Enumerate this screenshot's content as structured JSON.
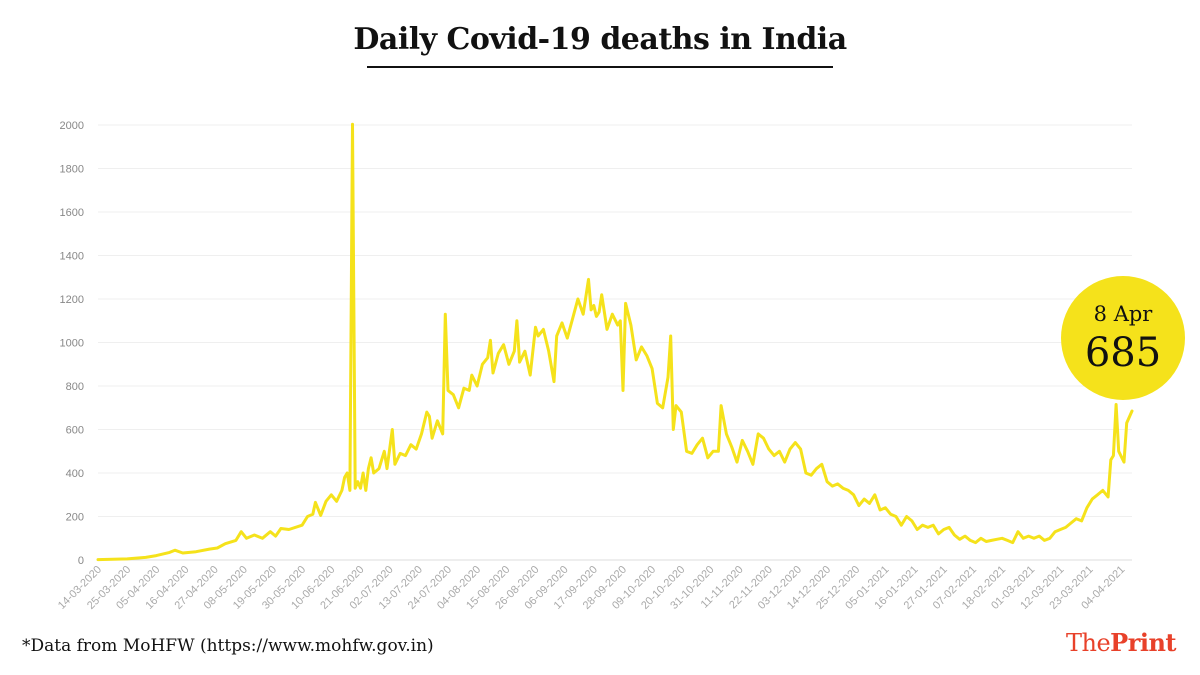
{
  "title": "Daily Covid-19 deaths in India",
  "source_note": "*Data from MoHFW (https://www.mohfw.gov.in)",
  "brand": {
    "part1": "The",
    "part2": "Print",
    "color": "#e8412a"
  },
  "callout": {
    "date": "8 Apr",
    "value": "685",
    "color": "#f5e21b"
  },
  "chart_data": {
    "type": "line",
    "title": "Daily Covid-19 deaths in India",
    "xlabel": "",
    "ylabel": "",
    "ylim": [
      0,
      2000
    ],
    "yticks": [
      0,
      200,
      400,
      600,
      800,
      1000,
      1200,
      1400,
      1600,
      1800,
      2000
    ],
    "grid": true,
    "line_color": "#f5e21b",
    "x_start": "2020-03-14",
    "x_end": "2021-04-08",
    "xtick_labels": [
      "14-03-2020",
      "25-03-2020",
      "05-04-2020",
      "16-04-2020",
      "27-04-2020",
      "08-05-2020",
      "19-05-2020",
      "30-05-2020",
      "10-06-2020",
      "21-06-2020",
      "02-07-2020",
      "13-07-2020",
      "24-07-2020",
      "04-08-2020",
      "15-08-2020",
      "26-08-2020",
      "06-09-2020",
      "17-09-2020",
      "28-09-2020",
      "09-10-2020",
      "20-10-2020",
      "31-10-2020",
      "11-11-2020",
      "22-11-2020",
      "03-12-2020",
      "14-12-2020",
      "25-12-2020",
      "05-01-2021",
      "16-01-2021",
      "27-01-2021",
      "07-02-2021",
      "18-02-2021",
      "01-03-2021",
      "12-03-2021",
      "23-03-2021",
      "04-04-2021"
    ],
    "series": [
      {
        "points": [
          [
            "2020-03-14",
            2
          ],
          [
            "2020-03-25",
            5
          ],
          [
            "2020-04-01",
            12
          ],
          [
            "2020-04-05",
            20
          ],
          [
            "2020-04-10",
            35
          ],
          [
            "2020-04-12",
            45
          ],
          [
            "2020-04-15",
            32
          ],
          [
            "2020-04-20",
            38
          ],
          [
            "2020-04-25",
            50
          ],
          [
            "2020-04-28",
            55
          ],
          [
            "2020-05-01",
            75
          ],
          [
            "2020-05-05",
            90
          ],
          [
            "2020-05-07",
            130
          ],
          [
            "2020-05-09",
            100
          ],
          [
            "2020-05-12",
            115
          ],
          [
            "2020-05-15",
            100
          ],
          [
            "2020-05-18",
            130
          ],
          [
            "2020-05-20",
            110
          ],
          [
            "2020-05-22",
            145
          ],
          [
            "2020-05-25",
            140
          ],
          [
            "2020-05-30",
            160
          ],
          [
            "2020-06-01",
            200
          ],
          [
            "2020-06-03",
            210
          ],
          [
            "2020-06-04",
            265
          ],
          [
            "2020-06-06",
            205
          ],
          [
            "2020-06-08",
            270
          ],
          [
            "2020-06-10",
            300
          ],
          [
            "2020-06-12",
            270
          ],
          [
            "2020-06-14",
            320
          ],
          [
            "2020-06-15",
            380
          ],
          [
            "2020-06-16",
            400
          ],
          [
            "2020-06-17",
            320
          ],
          [
            "2020-06-18",
            2003
          ],
          [
            "2020-06-19",
            330
          ],
          [
            "2020-06-20",
            360
          ],
          [
            "2020-06-21",
            330
          ],
          [
            "2020-06-22",
            400
          ],
          [
            "2020-06-23",
            320
          ],
          [
            "2020-06-24",
            420
          ],
          [
            "2020-06-25",
            470
          ],
          [
            "2020-06-26",
            400
          ],
          [
            "2020-06-28",
            420
          ],
          [
            "2020-06-30",
            500
          ],
          [
            "2020-07-01",
            420
          ],
          [
            "2020-07-03",
            600
          ],
          [
            "2020-07-04",
            440
          ],
          [
            "2020-07-06",
            490
          ],
          [
            "2020-07-08",
            480
          ],
          [
            "2020-07-10",
            530
          ],
          [
            "2020-07-12",
            510
          ],
          [
            "2020-07-14",
            580
          ],
          [
            "2020-07-16",
            680
          ],
          [
            "2020-07-17",
            660
          ],
          [
            "2020-07-18",
            560
          ],
          [
            "2020-07-20",
            640
          ],
          [
            "2020-07-22",
            580
          ],
          [
            "2020-07-23",
            1130
          ],
          [
            "2020-07-24",
            780
          ],
          [
            "2020-07-26",
            760
          ],
          [
            "2020-07-28",
            700
          ],
          [
            "2020-07-30",
            790
          ],
          [
            "2020-08-01",
            780
          ],
          [
            "2020-08-02",
            850
          ],
          [
            "2020-08-04",
            800
          ],
          [
            "2020-08-06",
            900
          ],
          [
            "2020-08-08",
            930
          ],
          [
            "2020-08-09",
            1010
          ],
          [
            "2020-08-10",
            860
          ],
          [
            "2020-08-12",
            950
          ],
          [
            "2020-08-14",
            990
          ],
          [
            "2020-08-16",
            900
          ],
          [
            "2020-08-18",
            960
          ],
          [
            "2020-08-19",
            1100
          ],
          [
            "2020-08-20",
            910
          ],
          [
            "2020-08-22",
            960
          ],
          [
            "2020-08-24",
            850
          ],
          [
            "2020-08-26",
            1070
          ],
          [
            "2020-08-27",
            1030
          ],
          [
            "2020-08-29",
            1060
          ],
          [
            "2020-08-31",
            960
          ],
          [
            "2020-09-02",
            820
          ],
          [
            "2020-09-03",
            1030
          ],
          [
            "2020-09-05",
            1090
          ],
          [
            "2020-09-07",
            1020
          ],
          [
            "2020-09-09",
            1110
          ],
          [
            "2020-09-11",
            1200
          ],
          [
            "2020-09-13",
            1130
          ],
          [
            "2020-09-15",
            1290
          ],
          [
            "2020-09-16",
            1150
          ],
          [
            "2020-09-17",
            1170
          ],
          [
            "2020-09-18",
            1120
          ],
          [
            "2020-09-19",
            1140
          ],
          [
            "2020-09-20",
            1220
          ],
          [
            "2020-09-22",
            1060
          ],
          [
            "2020-09-24",
            1130
          ],
          [
            "2020-09-26",
            1080
          ],
          [
            "2020-09-27",
            1100
          ],
          [
            "2020-09-28",
            780
          ],
          [
            "2020-09-29",
            1180
          ],
          [
            "2020-10-01",
            1080
          ],
          [
            "2020-10-03",
            920
          ],
          [
            "2020-10-05",
            980
          ],
          [
            "2020-10-07",
            940
          ],
          [
            "2020-10-09",
            880
          ],
          [
            "2020-10-11",
            720
          ],
          [
            "2020-10-13",
            700
          ],
          [
            "2020-10-15",
            840
          ],
          [
            "2020-10-16",
            1030
          ],
          [
            "2020-10-17",
            600
          ],
          [
            "2020-10-18",
            710
          ],
          [
            "2020-10-20",
            680
          ],
          [
            "2020-10-22",
            500
          ],
          [
            "2020-10-24",
            490
          ],
          [
            "2020-10-26",
            530
          ],
          [
            "2020-10-28",
            560
          ],
          [
            "2020-10-30",
            470
          ],
          [
            "2020-11-01",
            500
          ],
          [
            "2020-11-03",
            500
          ],
          [
            "2020-11-04",
            710
          ],
          [
            "2020-11-06",
            580
          ],
          [
            "2020-11-08",
            520
          ],
          [
            "2020-11-10",
            450
          ],
          [
            "2020-11-12",
            550
          ],
          [
            "2020-11-14",
            500
          ],
          [
            "2020-11-16",
            440
          ],
          [
            "2020-11-18",
            580
          ],
          [
            "2020-11-20",
            560
          ],
          [
            "2020-11-22",
            510
          ],
          [
            "2020-11-24",
            480
          ],
          [
            "2020-11-26",
            500
          ],
          [
            "2020-11-28",
            450
          ],
          [
            "2020-11-30",
            510
          ],
          [
            "2020-12-02",
            540
          ],
          [
            "2020-12-04",
            510
          ],
          [
            "2020-12-06",
            400
          ],
          [
            "2020-12-08",
            390
          ],
          [
            "2020-12-10",
            420
          ],
          [
            "2020-12-12",
            440
          ],
          [
            "2020-12-14",
            360
          ],
          [
            "2020-12-16",
            340
          ],
          [
            "2020-12-18",
            350
          ],
          [
            "2020-12-20",
            330
          ],
          [
            "2020-12-22",
            320
          ],
          [
            "2020-12-24",
            300
          ],
          [
            "2020-12-26",
            250
          ],
          [
            "2020-12-28",
            280
          ],
          [
            "2020-12-30",
            260
          ],
          [
            "2021-01-01",
            300
          ],
          [
            "2021-01-03",
            230
          ],
          [
            "2021-01-05",
            240
          ],
          [
            "2021-01-07",
            210
          ],
          [
            "2021-01-09",
            200
          ],
          [
            "2021-01-11",
            160
          ],
          [
            "2021-01-13",
            200
          ],
          [
            "2021-01-15",
            180
          ],
          [
            "2021-01-17",
            140
          ],
          [
            "2021-01-19",
            160
          ],
          [
            "2021-01-21",
            150
          ],
          [
            "2021-01-23",
            160
          ],
          [
            "2021-01-25",
            120
          ],
          [
            "2021-01-27",
            140
          ],
          [
            "2021-01-29",
            150
          ],
          [
            "2021-01-31",
            115
          ],
          [
            "2021-02-02",
            95
          ],
          [
            "2021-02-04",
            110
          ],
          [
            "2021-02-06",
            90
          ],
          [
            "2021-02-08",
            80
          ],
          [
            "2021-02-10",
            100
          ],
          [
            "2021-02-12",
            85
          ],
          [
            "2021-02-14",
            90
          ],
          [
            "2021-02-16",
            95
          ],
          [
            "2021-02-18",
            100
          ],
          [
            "2021-02-20",
            90
          ],
          [
            "2021-02-22",
            80
          ],
          [
            "2021-02-24",
            130
          ],
          [
            "2021-02-26",
            100
          ],
          [
            "2021-02-28",
            110
          ],
          [
            "2021-03-02",
            100
          ],
          [
            "2021-03-04",
            110
          ],
          [
            "2021-03-06",
            90
          ],
          [
            "2021-03-08",
            100
          ],
          [
            "2021-03-10",
            130
          ],
          [
            "2021-03-12",
            140
          ],
          [
            "2021-03-14",
            150
          ],
          [
            "2021-03-16",
            170
          ],
          [
            "2021-03-18",
            190
          ],
          [
            "2021-03-20",
            180
          ],
          [
            "2021-03-22",
            240
          ],
          [
            "2021-03-24",
            280
          ],
          [
            "2021-03-26",
            300
          ],
          [
            "2021-03-28",
            320
          ],
          [
            "2021-03-30",
            290
          ],
          [
            "2021-03-31",
            460
          ],
          [
            "2021-04-01",
            480
          ],
          [
            "2021-04-02",
            715
          ],
          [
            "2021-04-03",
            500
          ],
          [
            "2021-04-05",
            450
          ],
          [
            "2021-04-06",
            630
          ],
          [
            "2021-04-08",
            685
          ]
        ]
      }
    ]
  }
}
